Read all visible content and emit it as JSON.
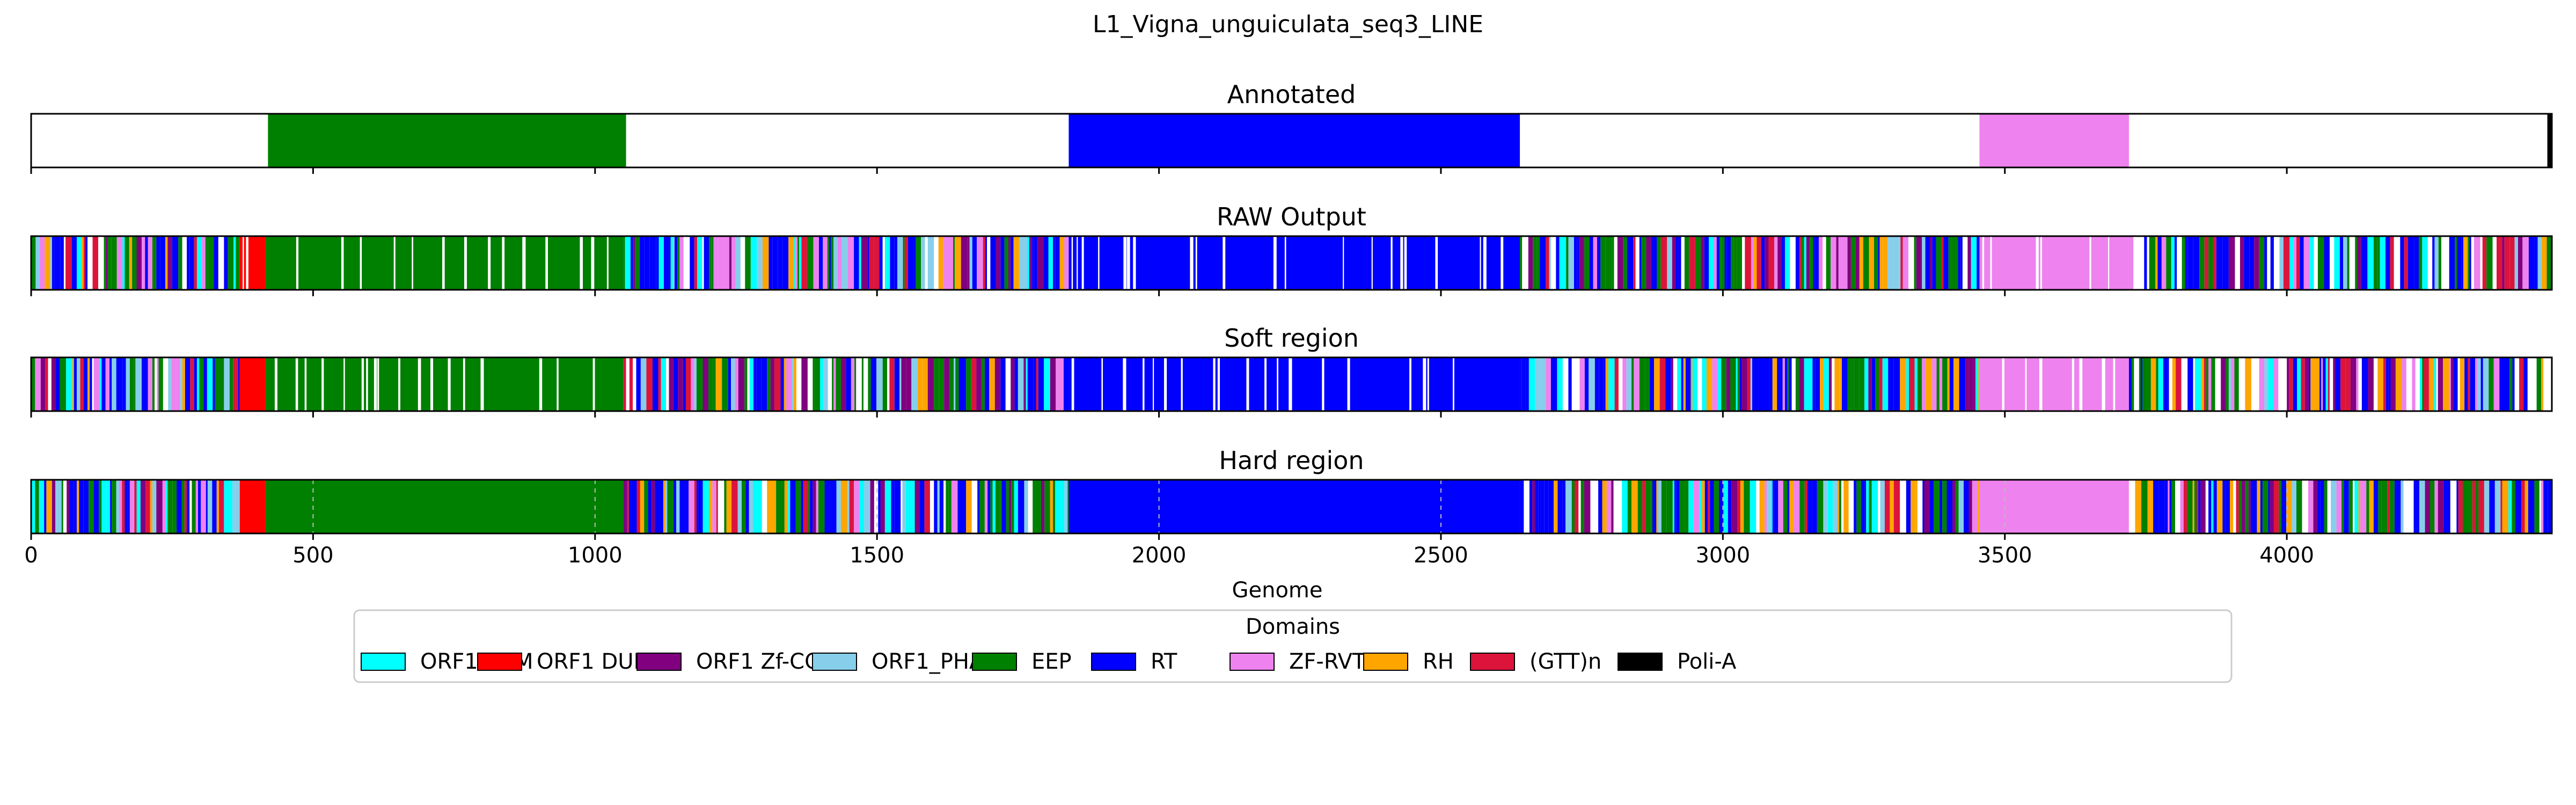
{
  "chart_data": {
    "type": "heatmap",
    "title": "L1_Vigna_unguiculata_seq3_LINE",
    "xlabel": "Genome",
    "xlim": [
      0,
      4470
    ],
    "xticks": [
      0,
      500,
      1000,
      1500,
      2000,
      2500,
      3000,
      3500,
      4000
    ],
    "grid": "dashed vertical lines on Hard region panel",
    "legend_placement": "bottom-center",
    "legend": {
      "title": "Domains",
      "entries": [
        {
          "label": "ORF1 RRM",
          "color": "#00ffff"
        },
        {
          "label": "ORF1 DUF",
          "color": "#ff0000"
        },
        {
          "label": "ORF1 Zf-CCHC",
          "color": "#800080"
        },
        {
          "label": "ORF1_PHA",
          "color": "#87ceeb"
        },
        {
          "label": "EEP",
          "color": "#008000"
        },
        {
          "label": "RT",
          "color": "#0000ff"
        },
        {
          "label": "ZF-RVT",
          "color": "#ee82ee"
        },
        {
          "label": "RH",
          "color": "#ffa500"
        },
        {
          "label": "(GTT)n",
          "color": "#dc143c"
        },
        {
          "label": "Poli-A",
          "color": "#000000"
        }
      ]
    },
    "panels": [
      {
        "title": "Annotated",
        "segments": [
          {
            "start": 420,
            "end": 1055,
            "domain": "EEP"
          },
          {
            "start": 1840,
            "end": 2640,
            "domain": "RT"
          },
          {
            "start": 3455,
            "end": 3720,
            "domain": "ZF-RVT"
          },
          {
            "start": 4462,
            "end": 4470,
            "domain": "Poli-A"
          }
        ]
      },
      {
        "title": "RAW Output",
        "segments": [
          {
            "start": 0,
            "end": 370,
            "domain": "mixed"
          },
          {
            "start": 370,
            "end": 415,
            "domain": "ORF1 DUF"
          },
          {
            "start": 415,
            "end": 1050,
            "domain": "EEP"
          },
          {
            "start": 1050,
            "end": 1840,
            "domain": "mixed"
          },
          {
            "start": 1840,
            "end": 2640,
            "domain": "RT"
          },
          {
            "start": 2640,
            "end": 3455,
            "domain": "mixed"
          },
          {
            "start": 3455,
            "end": 3720,
            "domain": "ZF-RVT"
          },
          {
            "start": 3720,
            "end": 4470,
            "domain": "mixed"
          }
        ]
      },
      {
        "title": "Soft region",
        "segments": [
          {
            "start": 0,
            "end": 370,
            "domain": "mixed"
          },
          {
            "start": 370,
            "end": 415,
            "domain": "ORF1 DUF"
          },
          {
            "start": 415,
            "end": 1050,
            "domain": "EEP"
          },
          {
            "start": 1050,
            "end": 1840,
            "domain": "mixed"
          },
          {
            "start": 1840,
            "end": 2640,
            "domain": "RT"
          },
          {
            "start": 2640,
            "end": 3455,
            "domain": "mixed"
          },
          {
            "start": 3455,
            "end": 3720,
            "domain": "ZF-RVT"
          },
          {
            "start": 3720,
            "end": 4470,
            "domain": "mixed"
          }
        ]
      },
      {
        "title": "Hard region",
        "segments": [
          {
            "start": 0,
            "end": 370,
            "domain": "mixed"
          },
          {
            "start": 370,
            "end": 415,
            "domain": "ORF1 DUF"
          },
          {
            "start": 415,
            "end": 1050,
            "domain": "EEP"
          },
          {
            "start": 1050,
            "end": 1840,
            "domain": "mixed"
          },
          {
            "start": 1840,
            "end": 2640,
            "domain": "RT"
          },
          {
            "start": 2640,
            "end": 3455,
            "domain": "mixed"
          },
          {
            "start": 3455,
            "end": 3720,
            "domain": "ZF-RVT"
          },
          {
            "start": 3720,
            "end": 4470,
            "domain": "mixed"
          }
        ]
      }
    ]
  }
}
